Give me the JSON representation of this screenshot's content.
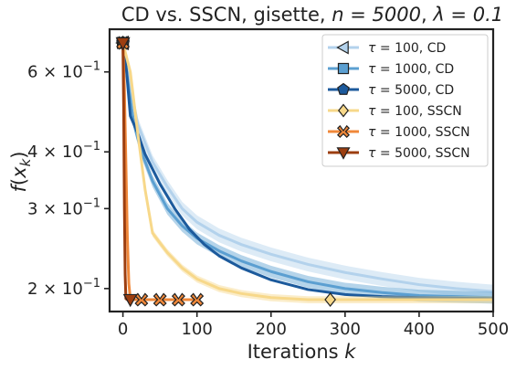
{
  "chart_data": {
    "type": "line",
    "title": {
      "base": "CD vs. SSCN, gisette, ",
      "n_text": "n = 5000",
      "sep": ", ",
      "lambda_text": "λ = 0.1"
    },
    "xlabel": {
      "base": "Iterations ",
      "var": "k"
    },
    "ylabel": {
      "f": "f",
      "paren_open": "(",
      "x": "x",
      "sub": "k",
      "paren_close": ")"
    },
    "x_scale": "linear",
    "y_scale": "log",
    "xlim": [
      -18,
      500
    ],
    "ylim": [
      0.178,
      0.745
    ],
    "x_ticks": [
      {
        "value": 0,
        "label": "0"
      },
      {
        "value": 100,
        "label": "100"
      },
      {
        "value": 200,
        "label": "200"
      },
      {
        "value": 300,
        "label": "300"
      },
      {
        "value": 400,
        "label": "400"
      },
      {
        "value": 500,
        "label": "500"
      }
    ],
    "y_ticks": [
      {
        "value": 0.6,
        "mant": "6",
        "times": "×",
        "base": "10",
        "exp": "−1"
      },
      {
        "value": 0.4,
        "mant": "4",
        "times": "×",
        "base": "10",
        "exp": "−1"
      },
      {
        "value": 0.3,
        "mant": "3",
        "times": "×",
        "base": "10",
        "exp": "−1"
      },
      {
        "value": 0.2,
        "mant": "2",
        "times": "×",
        "base": "10",
        "exp": "−1"
      }
    ],
    "legend_position": "top-right",
    "series": [
      {
        "name": "τ = 100, CD",
        "legend": {
          "tau": "τ",
          "value": " = 100, ",
          "method": "CD"
        },
        "color": "#b3d2ec",
        "marker": "triangle-left",
        "band": 0.035,
        "x": [
          0,
          10,
          20,
          40,
          60,
          80,
          100,
          130,
          160,
          200,
          250,
          300,
          350,
          400,
          450,
          500
        ],
        "y": [
          0.695,
          0.56,
          0.46,
          0.38,
          0.335,
          0.3,
          0.28,
          0.262,
          0.25,
          0.238,
          0.226,
          0.217,
          0.21,
          0.204,
          0.2,
          0.197
        ],
        "marker_x": [
          0,
          0
        ]
      },
      {
        "name": "τ = 1000, CD",
        "legend": {
          "tau": "τ",
          "value": " = 1000, ",
          "method": "CD"
        },
        "color": "#5b9fd1",
        "marker": "square",
        "band": 0.03,
        "x": [
          0,
          8,
          15,
          25,
          40,
          60,
          80,
          100,
          130,
          160,
          200,
          250,
          300,
          350,
          400,
          450,
          500
        ],
        "y": [
          0.695,
          0.55,
          0.46,
          0.4,
          0.345,
          0.3,
          0.275,
          0.258,
          0.242,
          0.23,
          0.218,
          0.207,
          0.2,
          0.196,
          0.193,
          0.192,
          0.191
        ],
        "marker_x": [
          0,
          0
        ]
      },
      {
        "name": "τ = 5000, CD",
        "legend": {
          "tau": "τ",
          "value": " = 5000, ",
          "method": "CD"
        },
        "color": "#1c5a9c",
        "marker": "pentagon",
        "band": 0.0,
        "x": [
          0,
          5,
          10,
          20,
          30,
          50,
          70,
          90,
          110,
          130,
          160,
          200,
          250,
          300,
          350,
          400,
          500
        ],
        "y": [
          0.695,
          0.6,
          0.48,
          0.44,
          0.395,
          0.34,
          0.3,
          0.27,
          0.25,
          0.236,
          0.222,
          0.209,
          0.199,
          0.194,
          0.192,
          0.191,
          0.19
        ],
        "marker_x": [
          0,
          0
        ]
      },
      {
        "name": "τ = 100, SSCN",
        "legend": {
          "tau": "τ",
          "value": " = 100, ",
          "method": "SSCN"
        },
        "color": "#f7d88a",
        "marker": "diamond",
        "band": 0.018,
        "x": [
          0,
          10,
          20,
          30,
          40,
          50,
          60,
          80,
          100,
          130,
          160,
          200,
          250,
          280,
          350,
          400,
          500
        ],
        "y": [
          0.695,
          0.6,
          0.44,
          0.33,
          0.265,
          0.252,
          0.24,
          0.222,
          0.21,
          0.2,
          0.195,
          0.191,
          0.189,
          0.189,
          0.189,
          0.189,
          0.189
        ],
        "marker_x": [
          0,
          280
        ]
      },
      {
        "name": "τ = 1000, SSCN",
        "legend": {
          "tau": "τ",
          "value": " = 1000, ",
          "method": "SSCN"
        },
        "color": "#f0883a",
        "marker": "x",
        "band": 0.0,
        "x": [
          0,
          2,
          4,
          6,
          8,
          10,
          15,
          25,
          50,
          75,
          100
        ],
        "y": [
          0.695,
          0.55,
          0.38,
          0.26,
          0.205,
          0.19,
          0.189,
          0.189,
          0.189,
          0.189,
          0.189
        ],
        "marker_x": [
          0,
          25,
          50,
          75,
          100
        ]
      },
      {
        "name": "τ = 5000, SSCN",
        "legend": {
          "tau": "τ",
          "value": " = 5000, ",
          "method": "SSCN"
        },
        "color": "#9c3e10",
        "marker": "triangle-down",
        "band": 0.0,
        "x": [
          0,
          1,
          2,
          3,
          4,
          6,
          10
        ],
        "y": [
          0.695,
          0.5,
          0.3,
          0.215,
          0.19,
          0.189,
          0.189
        ],
        "marker_x": [
          0,
          10
        ]
      }
    ]
  }
}
